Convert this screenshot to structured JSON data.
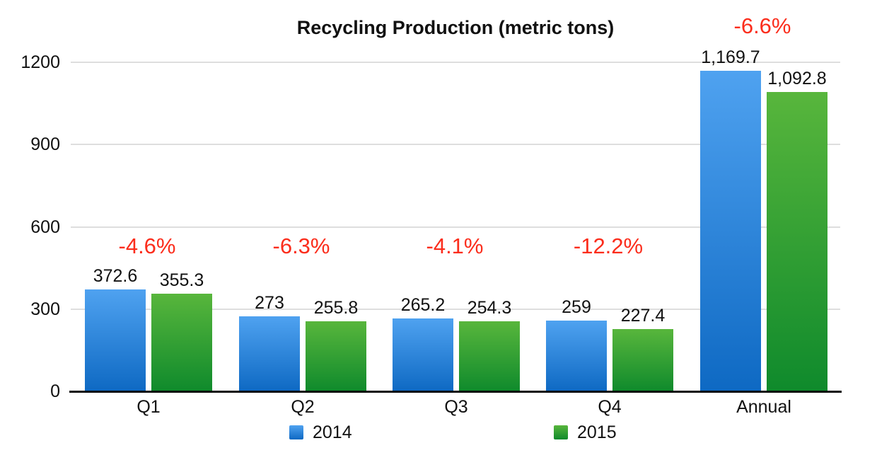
{
  "chart_data": {
    "type": "bar",
    "title": "Recycling Production (metric tons)",
    "categories": [
      "Q1",
      "Q2",
      "Q3",
      "Q4",
      "Annual"
    ],
    "series": [
      {
        "name": "2014",
        "values": [
          372.6,
          273,
          265.2,
          259,
          1169.7
        ],
        "color_top": "#4fa2f0",
        "color_bottom": "#0e69c3"
      },
      {
        "name": "2015",
        "values": [
          355.3,
          255.8,
          254.3,
          227.4,
          1092.8
        ],
        "color_top": "#58b63c",
        "color_bottom": "#0f8a2c"
      }
    ],
    "value_labels": [
      [
        "372.6",
        "355.3"
      ],
      [
        "273",
        "255.8"
      ],
      [
        "265.2",
        "254.3"
      ],
      [
        "259",
        "227.4"
      ],
      [
        "1,169.7",
        "1,092.8"
      ]
    ],
    "pct_change_labels": [
      "-4.6%",
      "-6.3%",
      "-4.1%",
      "-12.2%",
      "-6.6%"
    ],
    "pct_color": "#fb2d1c",
    "y_ticks": [
      "0",
      "300",
      "600",
      "900",
      "1200"
    ],
    "ylim": [
      0,
      1200
    ],
    "grid": true,
    "legend_position": "bottom",
    "legend_entries": [
      "2014",
      "2015"
    ]
  }
}
